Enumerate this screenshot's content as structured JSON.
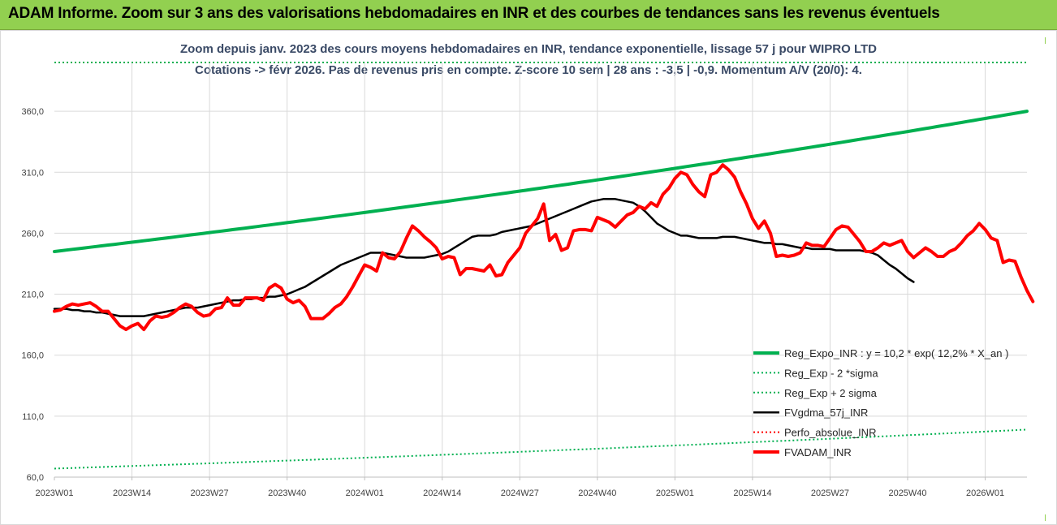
{
  "header": {
    "title": "ADAM Informe. Zoom sur 3 ans des valorisations hebdomadaires en INR et des courbes de tendances sans les revenus éventuels"
  },
  "chart_data": {
    "type": "line",
    "title_line1": "Zoom depuis janv. 2023 des cours moyens hebdomadaires en INR, tendance exponentielle, lissage 57 j pour WIPRO LTD",
    "title_line2": "Cotations -> févr 2026.  Pas de revenus pris en compte. Z-score 10 sem | 28 ans : -3,5 | -0,9. Momentum A/V (20/0): 4.",
    "ylim": [
      60,
      400
    ],
    "yticks": [
      "60,0",
      "110,0",
      "160,0",
      "210,0",
      "260,0",
      "310,0",
      "360,0"
    ],
    "ytick_values": [
      60,
      110,
      160,
      210,
      260,
      310,
      360
    ],
    "xticks": [
      "2023W01",
      "2023W14",
      "2023W27",
      "2023W40",
      "2024W01",
      "2024W14",
      "2024W27",
      "2024W40",
      "2025W01",
      "2025W14",
      "2025W27",
      "2025W40",
      "2026W01"
    ],
    "x_start_week": 0,
    "x_end_week": 163,
    "grid": true,
    "legend_position": "bottom-right",
    "series": [
      {
        "name": "Reg_Expo_INR : y = 10,2 * exp( 12,2% *  X_an )",
        "color": "#00b050",
        "style": "solid-thick",
        "start": 245,
        "end": 360
      },
      {
        "name": "Reg_Exp - 2 *sigma",
        "color": "#00b050",
        "style": "dotted",
        "start": 67,
        "end": 99
      },
      {
        "name": "Reg_Exp + 2 sigma",
        "color": "#00b050",
        "style": "dotted",
        "start": 400,
        "end": 400
      },
      {
        "name": "FVgdma_57j_INR",
        "color": "#000000",
        "style": "solid",
        "values": [
          198,
          198,
          198,
          197,
          197,
          196,
          196,
          195,
          195,
          194,
          193,
          192,
          192,
          192,
          192,
          192,
          193,
          194,
          195,
          196,
          197,
          198,
          199,
          199,
          199,
          200,
          201,
          202,
          203,
          204,
          205,
          205,
          206,
          206,
          207,
          207,
          208,
          208,
          209,
          210,
          212,
          214,
          216,
          219,
          222,
          225,
          228,
          231,
          234,
          236,
          238,
          240,
          242,
          244,
          244,
          244,
          243,
          242,
          241,
          240,
          240,
          240,
          240,
          241,
          242,
          243,
          245,
          248,
          251,
          254,
          257,
          258,
          258,
          258,
          259,
          261,
          262,
          263,
          264,
          265,
          266,
          268,
          270,
          272,
          274,
          276,
          278,
          280,
          282,
          284,
          286,
          287,
          288,
          288,
          288,
          287,
          286,
          285,
          282,
          278,
          273,
          268,
          265,
          262,
          260,
          258,
          258,
          257,
          256,
          256,
          256,
          256,
          257,
          257,
          257,
          256,
          255,
          254,
          253,
          252,
          252,
          251,
          251,
          250,
          249,
          248,
          248,
          247,
          247,
          247,
          247,
          246,
          246,
          246,
          246,
          246,
          245,
          244,
          242,
          238,
          234,
          231,
          227,
          223,
          220
        ]
      },
      {
        "name": "Perfo_absolue_INR",
        "color": "#ff0000",
        "style": "dotted",
        "values": []
      },
      {
        "name": "FVADAM_INR",
        "color": "#ff0000",
        "style": "solid-thick",
        "values": [
          196,
          197,
          200,
          202,
          201,
          202,
          203,
          200,
          196,
          196,
          190,
          184,
          181,
          184,
          186,
          181,
          188,
          192,
          191,
          192,
          195,
          199,
          202,
          200,
          195,
          192,
          193,
          198,
          199,
          207,
          201,
          201,
          207,
          207,
          207,
          205,
          215,
          218,
          215,
          206,
          203,
          205,
          200,
          190,
          190,
          190,
          194,
          199,
          202,
          208,
          216,
          225,
          234,
          232,
          229,
          244,
          240,
          239,
          245,
          256,
          266,
          262,
          257,
          253,
          248,
          239,
          241,
          240,
          226,
          231,
          231,
          230,
          229,
          234,
          225,
          226,
          236,
          242,
          248,
          260,
          266,
          272,
          284,
          254,
          259,
          246,
          248,
          262,
          263,
          263,
          262,
          273,
          271,
          269,
          265,
          270,
          275,
          277,
          282,
          280,
          285,
          282,
          292,
          297,
          305,
          310,
          308,
          300,
          294,
          290,
          308,
          310,
          316,
          312,
          306,
          294,
          284,
          272,
          264,
          270,
          260,
          241,
          242,
          241,
          242,
          244,
          252,
          250,
          250,
          249,
          256,
          263,
          266,
          265,
          259,
          253,
          245,
          245,
          248,
          252,
          250,
          252,
          254,
          245,
          240,
          244,
          248,
          245,
          241,
          241,
          245,
          247,
          252,
          258,
          262,
          268,
          263,
          256,
          254,
          236,
          238,
          237,
          224,
          213,
          204
        ]
      }
    ]
  }
}
